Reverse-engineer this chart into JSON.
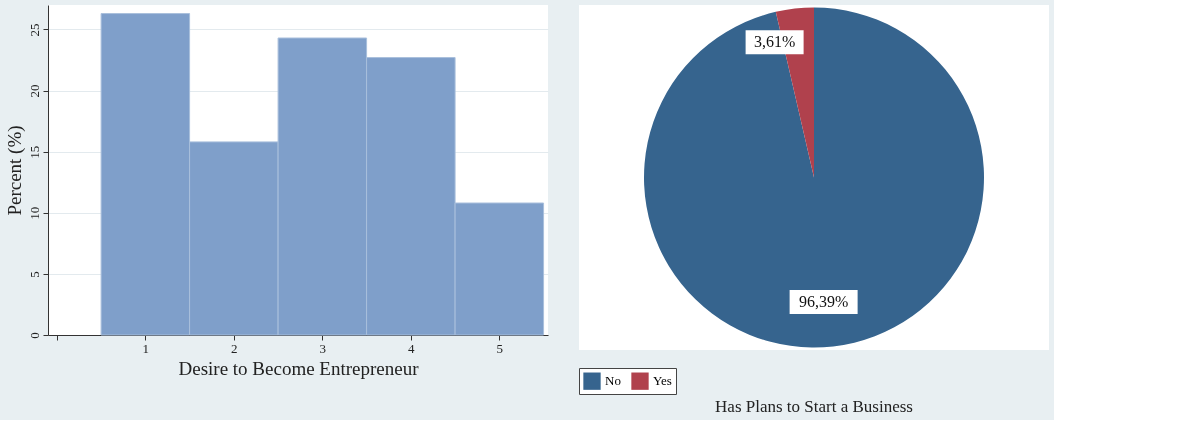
{
  "chart_data": [
    {
      "type": "histogram",
      "xlabel": "Desire to Become Entrepreneur",
      "ylabel": "Percent (%)",
      "bins": [
        0.5,
        1.5,
        2.5,
        3.5,
        4.5,
        5.5
      ],
      "values": [
        26.3,
        15.8,
        24.3,
        22.7,
        10.8
      ],
      "color": "#7f9fca",
      "xlim": [
        -0.1,
        5.55
      ],
      "xticks": [
        {
          "value": 0,
          "label": null
        },
        1,
        2,
        3,
        4,
        5
      ],
      "ylim": [
        0,
        27
      ],
      "yticks": [
        0,
        5,
        10,
        15,
        20,
        25
      ],
      "grid": "y"
    },
    {
      "type": "pie",
      "title": "Has Plans to Start a Business",
      "categories": [
        "No",
        "Yes"
      ],
      "values": [
        96.39,
        3.61
      ],
      "colors": [
        "#36648e",
        "#b0414d"
      ],
      "value_labels": [
        "96,39%",
        "3,61%"
      ],
      "legend": "bottom"
    }
  ]
}
